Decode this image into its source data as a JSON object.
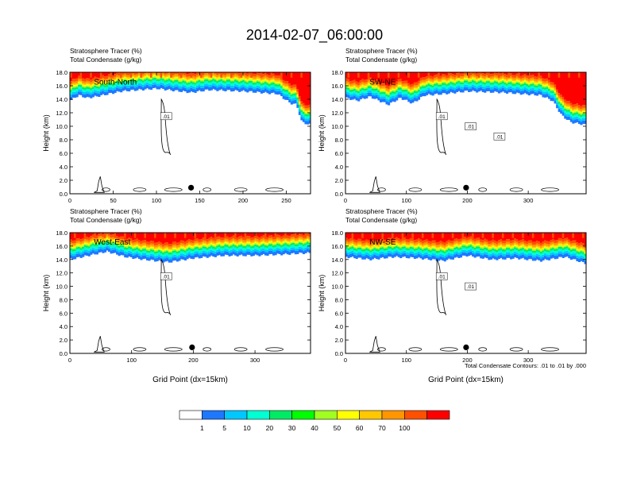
{
  "title": "2014-02-07_06:00:00",
  "panel_header_lines": [
    "Stratosphere Tracer   (%)",
    "Total Condensate   (g/kg)"
  ],
  "y_axis_label": "Height (km)",
  "x_axis_label": "Grid Point (dx=15km)",
  "contour_note": "Total Condensate Contours: .01 to .01 by .000",
  "colors": {
    "levels": [
      "#ffffff",
      "#1e78ff",
      "#00c8ff",
      "#00ffd2",
      "#00eb64",
      "#00ff00",
      "#a0ff20",
      "#ffff00",
      "#ffc800",
      "#ff9600",
      "#ff5000",
      "#ff0000"
    ],
    "marker": "#000000"
  },
  "chart_data": [
    {
      "type": "heatmap",
      "panel": "South-North",
      "region_label": "South-North",
      "xlim": [
        0,
        278
      ],
      "ylim": [
        0,
        18
      ],
      "xticks": [
        "0",
        "50",
        "100",
        "150",
        "200",
        "250"
      ],
      "yticks": [
        "0.0",
        "2.0",
        "4.0",
        "6.0",
        "8.0",
        "10.0",
        "12.0",
        "14.0",
        "16.0",
        "18.0"
      ],
      "contour_labels": [
        ".01"
      ],
      "marker_x": 140,
      "tracer_base_km": [
        [
          0,
          13.8
        ],
        [
          10,
          14.6
        ],
        [
          20,
          14.2
        ],
        [
          30,
          14.4
        ],
        [
          60,
          15.2
        ],
        [
          100,
          15.6
        ],
        [
          140,
          15.0
        ],
        [
          160,
          15.4
        ],
        [
          200,
          15.2
        ],
        [
          240,
          14.8
        ],
        [
          255,
          13.4
        ],
        [
          262,
          13.2
        ],
        [
          268,
          10.6
        ],
        [
          278,
          10.2
        ]
      ]
    },
    {
      "type": "heatmap",
      "panel": "SW-NE",
      "region_label": "SW-NE",
      "xlim": [
        0,
        395
      ],
      "ylim": [
        0,
        18
      ],
      "xticks": [
        "0",
        "100",
        "200",
        "300"
      ],
      "yticks": [
        "0.0",
        "2.0",
        "4.0",
        "6.0",
        "8.0",
        "10.0",
        "12.0",
        "14.0",
        "16.0",
        "18.0"
      ],
      "contour_labels": [
        ".01",
        ".01",
        ".01"
      ],
      "marker_x": 198,
      "tracer_base_km": [
        [
          0,
          14.2
        ],
        [
          20,
          13.8
        ],
        [
          40,
          14.4
        ],
        [
          70,
          13.2
        ],
        [
          90,
          14.2
        ],
        [
          110,
          13.4
        ],
        [
          130,
          14.6
        ],
        [
          160,
          14.8
        ],
        [
          200,
          15.2
        ],
        [
          260,
          15.0
        ],
        [
          320,
          14.6
        ],
        [
          340,
          13.8
        ],
        [
          355,
          11.6
        ],
        [
          370,
          10.6
        ],
        [
          395,
          10.2
        ]
      ]
    },
    {
      "type": "heatmap",
      "panel": "West-East",
      "region_label": "West-East",
      "xlim": [
        0,
        390
      ],
      "ylim": [
        0,
        18
      ],
      "xticks": [
        "0",
        "100",
        "200",
        "300"
      ],
      "yticks": [
        "0.0",
        "2.0",
        "4.0",
        "6.0",
        "8.0",
        "10.0",
        "12.0",
        "14.0",
        "16.0",
        "18.0"
      ],
      "contour_labels": [
        ".01"
      ],
      "marker_x": 198,
      "tracer_base_km": [
        [
          0,
          14.0
        ],
        [
          30,
          14.6
        ],
        [
          60,
          15.2
        ],
        [
          90,
          14.4
        ],
        [
          120,
          14.0
        ],
        [
          160,
          13.6
        ],
        [
          200,
          14.2
        ],
        [
          250,
          14.6
        ],
        [
          300,
          14.6
        ],
        [
          350,
          14.8
        ],
        [
          390,
          15.0
        ]
      ]
    },
    {
      "type": "heatmap",
      "panel": "NW-SE",
      "region_label": "NW-SE",
      "xlim": [
        0,
        395
      ],
      "ylim": [
        0,
        18
      ],
      "xticks": [
        "0",
        "100",
        "200",
        "300"
      ],
      "yticks": [
        "0.0",
        "2.0",
        "4.0",
        "6.0",
        "8.0",
        "10.0",
        "12.0",
        "14.0",
        "16.0",
        "18.0"
      ],
      "contour_labels": [
        ".01",
        ".01"
      ],
      "marker_x": 198,
      "tracer_base_km": [
        [
          0,
          14.4
        ],
        [
          40,
          14.0
        ],
        [
          80,
          14.4
        ],
        [
          120,
          14.2
        ],
        [
          160,
          13.8
        ],
        [
          200,
          14.6
        ],
        [
          240,
          14.0
        ],
        [
          280,
          14.2
        ],
        [
          320,
          13.8
        ],
        [
          360,
          14.4
        ],
        [
          395,
          13.4
        ]
      ]
    }
  ],
  "colorbar": {
    "labels": [
      "1",
      "5",
      "10",
      "20",
      "30",
      "40",
      "50",
      "60",
      "70",
      "100"
    ]
  }
}
